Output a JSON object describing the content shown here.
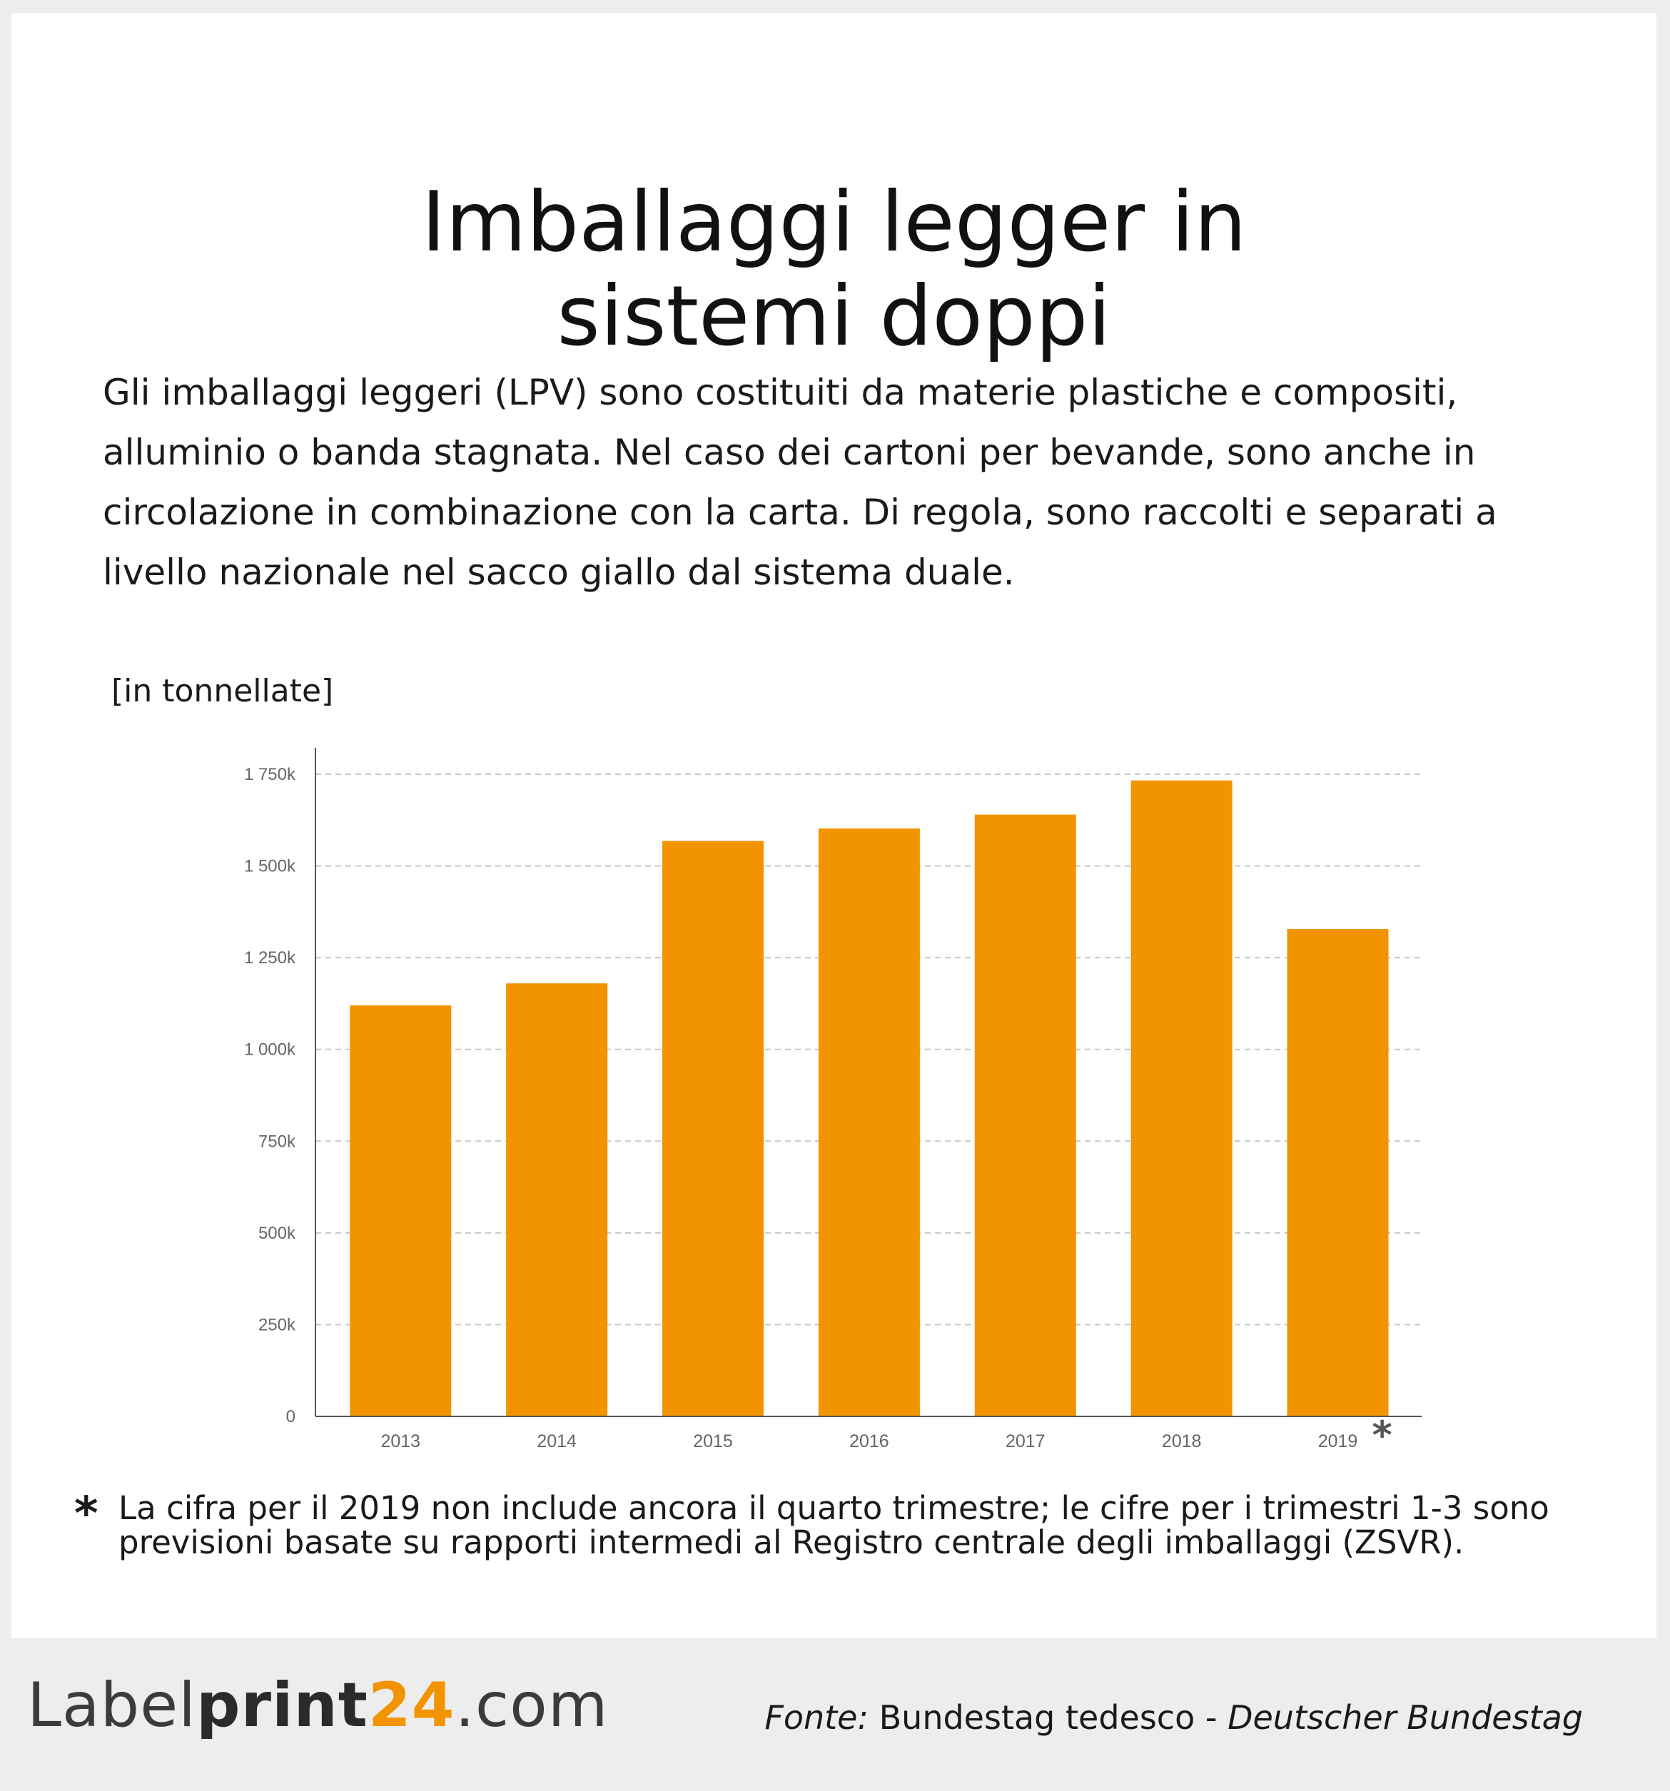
{
  "title_lines": [
    "Imballaggi legger in",
    "sistemi doppi"
  ],
  "intro": "Gli imballaggi leggeri (LPV) sono costituiti da materie plastiche e compositi, alluminio o banda stagnata. Nel caso dei cartoni per bevande, sono anche in circolazione in combinazione con la carta. Di regola, sono raccolti e separati a livello nazionale nel sacco giallo dal sistema duale.",
  "unit_label": "[in tonnellate]",
  "chart_data": {
    "type": "bar",
    "title": "",
    "xlabel": "",
    "ylabel": "[in tonnellate]",
    "categories": [
      "2013",
      "2014",
      "2015",
      "2016",
      "2017",
      "2018",
      "2019"
    ],
    "values": [
      1120000,
      1180000,
      1568000,
      1602000,
      1640000,
      1733000,
      1328000
    ],
    "ylim": [
      0,
      1750000
    ],
    "yticks": [
      0,
      250000,
      500000,
      750000,
      1000000,
      1250000,
      1500000,
      1750000
    ],
    "ytick_labels": [
      "0",
      "250k",
      "500k",
      "750k",
      "1 000k",
      "1 250k",
      "1 500k",
      "1 750k"
    ],
    "grid": true,
    "bar_color": "#f29400",
    "annotations": [
      {
        "category": "2019",
        "text": "*"
      }
    ]
  },
  "footnote": {
    "marker": "*",
    "text": "La cifra per il 2019 non include ancora il quarto trimestre; le cifre per i trimestri 1-3 sono previsioni basate su rapporti intermedi al Registro centrale degli imballaggi (ZSVR)."
  },
  "logo": {
    "part1": "Label",
    "part2": "print",
    "part3": "24",
    "part4": ".com"
  },
  "source": {
    "prefix": "Fonte:",
    "main": "Bundestag tedesco - ",
    "italic": "Deutscher Bundestag"
  },
  "colors": {
    "accent": "#f29400",
    "background": "#ededed",
    "card": "#ffffff"
  }
}
